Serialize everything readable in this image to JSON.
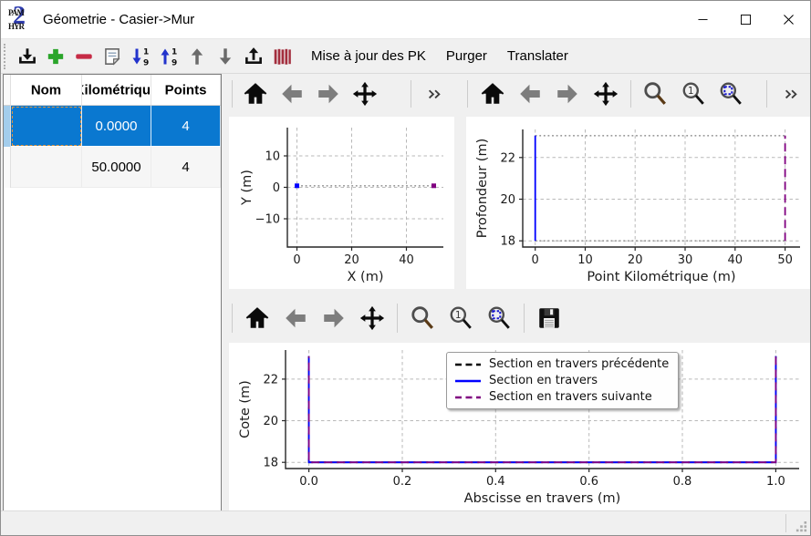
{
  "window": {
    "title": "Géometrie - Casier->Mur",
    "app_icon": {
      "top": "PAM",
      "bottom": "HYR",
      "overlay": "2"
    },
    "controls": [
      "minimize",
      "maximize",
      "close"
    ]
  },
  "toolbar": {
    "icons": [
      "import",
      "add",
      "remove",
      "edit",
      "sort-desc",
      "sort-asc",
      "move-up",
      "move-down",
      "export",
      "pk-bars"
    ],
    "actions": [
      "Mise à jour des PK",
      "Purger",
      "Translater"
    ]
  },
  "table": {
    "columns": [
      "Nom",
      "Kilométrique",
      "Points"
    ],
    "rows": [
      {
        "nom": "",
        "pk": "0.0000",
        "points": "4",
        "selected": true
      },
      {
        "nom": "",
        "pk": "50.0000",
        "points": "4",
        "selected": false
      }
    ]
  },
  "nav_toolbars": {
    "top_left": [
      "sep",
      "home",
      "back",
      "forward",
      "pan",
      "spacer",
      "sep",
      "more"
    ],
    "top_right": [
      "sep",
      "home",
      "back",
      "forward",
      "pan",
      "sep",
      "zoom",
      "zoom-one",
      "zoom-rect",
      "spacer",
      "sep",
      "more"
    ],
    "bottom": [
      "sep",
      "home",
      "back",
      "forward",
      "pan",
      "sep",
      "zoom",
      "zoom-one",
      "zoom-rect",
      "sep",
      "save"
    ]
  },
  "chart_data": [
    {
      "name": "plan-view",
      "type": "line",
      "xlabel": "X (m)",
      "ylabel": "Y (m)",
      "xlim": [
        -3.5,
        53.5
      ],
      "ylim": [
        -19,
        19
      ],
      "grid": true,
      "xticks": [
        {
          "v": 0,
          "l": "0"
        },
        {
          "v": 20,
          "l": "20"
        },
        {
          "v": 40,
          "l": "40"
        }
      ],
      "yticks": [
        {
          "v": -10,
          "l": "−10"
        },
        {
          "v": 0,
          "l": "0"
        },
        {
          "v": 10,
          "l": "10"
        }
      ],
      "series": [
        {
          "name": "trace-guide",
          "color": "#999999",
          "dash": "dotted",
          "width": 1.6,
          "x": [
            0,
            50
          ],
          "y": [
            0.5,
            0.5
          ]
        }
      ],
      "point_markers": [
        {
          "x": 0,
          "y": 0.5,
          "color": "#0000ff"
        },
        {
          "x": 50,
          "y": 0.5,
          "color": "#800080"
        }
      ]
    },
    {
      "name": "longitudinal-profile",
      "type": "line",
      "xlabel": "Point Kilométrique (m)",
      "ylabel": "Profondeur (m)",
      "xlim": [
        -2.5,
        53
      ],
      "ylim": [
        17.7,
        23.35
      ],
      "grid": true,
      "xticks": [
        {
          "v": 0,
          "l": "0"
        },
        {
          "v": 10,
          "l": "10"
        },
        {
          "v": 20,
          "l": "20"
        },
        {
          "v": 30,
          "l": "30"
        },
        {
          "v": 40,
          "l": "40"
        },
        {
          "v": 50,
          "l": "50"
        }
      ],
      "yticks": [
        {
          "v": 18,
          "l": "18"
        },
        {
          "v": 20,
          "l": "20"
        },
        {
          "v": 22,
          "l": "22"
        }
      ],
      "series": [
        {
          "name": "upper-envelope",
          "color": "#999999",
          "dash": "dotted",
          "width": 1.6,
          "x": [
            0,
            50
          ],
          "y": [
            23.05,
            23.05
          ]
        },
        {
          "name": "lower-envelope",
          "color": "#999999",
          "dash": "dotted",
          "width": 1.6,
          "x": [
            0,
            50
          ],
          "y": [
            18,
            18
          ]
        },
        {
          "name": "section-courante",
          "color": "#0000ff",
          "dash": "solid",
          "width": 1.8,
          "x": [
            0,
            0
          ],
          "y": [
            18,
            23.05
          ]
        },
        {
          "name": "section-suivante",
          "color": "#800080",
          "dash": "dashed",
          "width": 1.8,
          "x": [
            50,
            50
          ],
          "y": [
            18,
            23.05
          ]
        }
      ]
    },
    {
      "name": "cross-section",
      "type": "line",
      "xlabel": "Abscisse en travers (m)",
      "ylabel": "Cote (m)",
      "xlim": [
        -0.05,
        1.05
      ],
      "ylim": [
        17.7,
        23.4
      ],
      "grid": true,
      "xticks": [
        {
          "v": 0,
          "l": "0.0"
        },
        {
          "v": 0.2,
          "l": "0.2"
        },
        {
          "v": 0.4,
          "l": "0.4"
        },
        {
          "v": 0.6,
          "l": "0.6"
        },
        {
          "v": 0.8,
          "l": "0.8"
        },
        {
          "v": 1.0,
          "l": "1.0"
        }
      ],
      "yticks": [
        {
          "v": 18,
          "l": "18"
        },
        {
          "v": 20,
          "l": "20"
        },
        {
          "v": 22,
          "l": "22"
        }
      ],
      "series": [
        {
          "name": "Section en travers précédente",
          "color": "#000000",
          "dash": "dashed",
          "width": 1.8,
          "x": [
            0,
            0,
            1,
            1
          ],
          "y": [
            23.1,
            18,
            18,
            23.1
          ]
        },
        {
          "name": "Section en travers",
          "color": "#0000ff",
          "dash": "solid",
          "width": 1.8,
          "x": [
            0,
            0,
            1,
            1
          ],
          "y": [
            23.1,
            18,
            18,
            23.1
          ]
        },
        {
          "name": "Section en travers suivante",
          "color": "#800080",
          "dash": "dashed2",
          "width": 1.8,
          "x": [
            0,
            0,
            1,
            1
          ],
          "y": [
            23.1,
            18,
            18,
            23.1
          ]
        }
      ],
      "legend": [
        {
          "label": "Section en travers précédente",
          "color": "#000000",
          "dash": "dashed"
        },
        {
          "label": "Section en travers",
          "color": "#0000ff",
          "dash": "solid"
        },
        {
          "label": "Section en travers suivante",
          "color": "#800080",
          "dash": "dashed"
        }
      ]
    }
  ],
  "colors": {
    "selection": "#0a78d0",
    "toolbar_bg": "#f0f0f0",
    "section_current": "#0000ff",
    "section_next": "#800080",
    "section_prev": "#000000"
  }
}
